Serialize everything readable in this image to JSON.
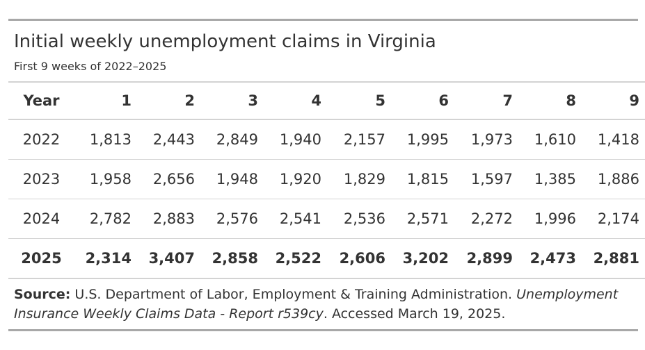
{
  "title": "Initial weekly unemployment claims in Virginia",
  "subtitle": "First 9 weeks of 2022–2025",
  "table": {
    "headers": [
      "Year",
      "1",
      "2",
      "3",
      "4",
      "5",
      "6",
      "7",
      "8",
      "9"
    ],
    "rows": [
      {
        "year": "2022",
        "values": [
          "1,813",
          "2,443",
          "2,849",
          "1,940",
          "2,157",
          "1,995",
          "1,973",
          "1,610",
          "1,418"
        ],
        "bold": false
      },
      {
        "year": "2023",
        "values": [
          "1,958",
          "2,656",
          "1,948",
          "1,920",
          "1,829",
          "1,815",
          "1,597",
          "1,385",
          "1,886"
        ],
        "bold": false
      },
      {
        "year": "2024",
        "values": [
          "2,782",
          "2,883",
          "2,576",
          "2,541",
          "2,536",
          "2,571",
          "2,272",
          "1,996",
          "2,174"
        ],
        "bold": false
      },
      {
        "year": "2025",
        "values": [
          "2,314",
          "3,407",
          "2,858",
          "2,522",
          "2,606",
          "3,202",
          "2,899",
          "2,473",
          "2,881"
        ],
        "bold": true
      }
    ]
  },
  "source": {
    "label": "Source:",
    "text_plain": " U.S. Department of Labor, Employment & Training Administration. ",
    "text_italic": "Unemployment Insurance Weekly Claims Data - Report r539cy",
    "text_end": ". Accessed March 19, 2025."
  },
  "colors": {
    "text": "#333333",
    "rule": "#a8a8a8",
    "grid": "#d3d3d3"
  }
}
